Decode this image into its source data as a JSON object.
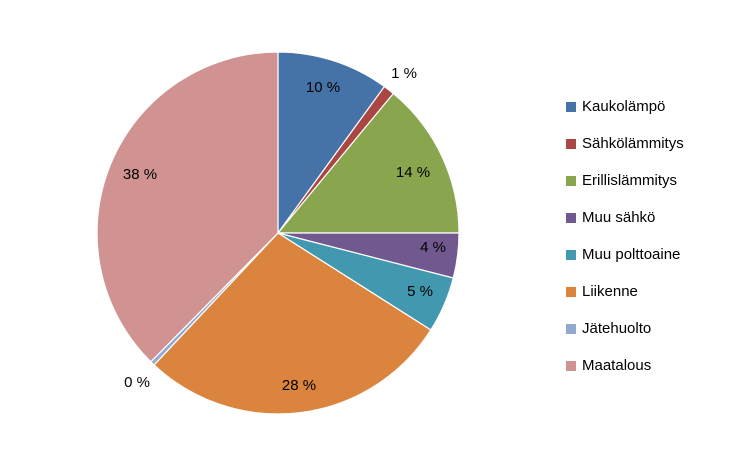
{
  "chart_data": {
    "type": "pie",
    "title": "",
    "legend_position": "right",
    "slices": [
      {
        "name": "Kaukolämpö",
        "value": 10,
        "label": "10 %",
        "color": "#4572A7"
      },
      {
        "name": "Sähkölämmitys",
        "value": 1,
        "label": "1 %",
        "color": "#AA4643"
      },
      {
        "name": "Erillislämmitys",
        "value": 14,
        "label": "14 %",
        "color": "#89A54E"
      },
      {
        "name": "Muu sähkö",
        "value": 4,
        "label": "4 %",
        "color": "#71588F"
      },
      {
        "name": "Muu polttoaine",
        "value": 5,
        "label": "5 %",
        "color": "#4198AF"
      },
      {
        "name": "Liikenne",
        "value": 28,
        "label": "28 %",
        "color": "#DB843D"
      },
      {
        "name": "Jätehuolto",
        "value": 0.4,
        "label": "0 %",
        "color": "#93A9CF"
      },
      {
        "name": "Maatalous",
        "value": 37.6,
        "label": "38 %",
        "color": "#D09392"
      }
    ]
  }
}
